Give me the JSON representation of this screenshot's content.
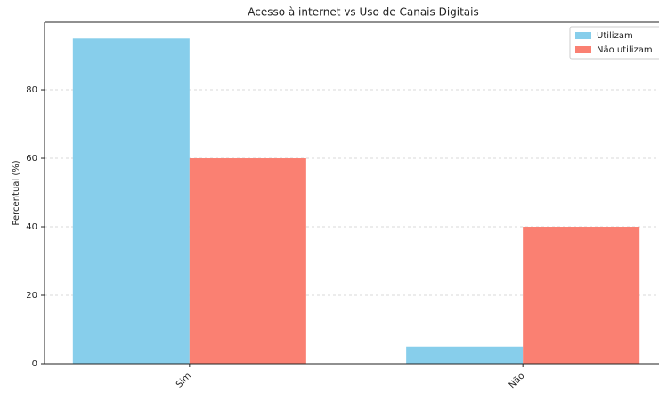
{
  "chart_data": {
    "type": "bar",
    "title": "Acesso à internet vs Uso de Canais Digitais",
    "y_label": "Percentual (%)",
    "categories": [
      "Sim",
      "Não"
    ],
    "series": [
      {
        "name": "Utilizam",
        "color": "#87ceeb",
        "values": [
          95,
          5
        ]
      },
      {
        "name": "Não utilizam",
        "color": "#fa8072",
        "values": [
          60,
          40
        ]
      }
    ],
    "ylim": [
      0,
      99.75
    ],
    "yticks": [
      0,
      20,
      40,
      60,
      80
    ],
    "grid": true,
    "legend": "upper right"
  }
}
